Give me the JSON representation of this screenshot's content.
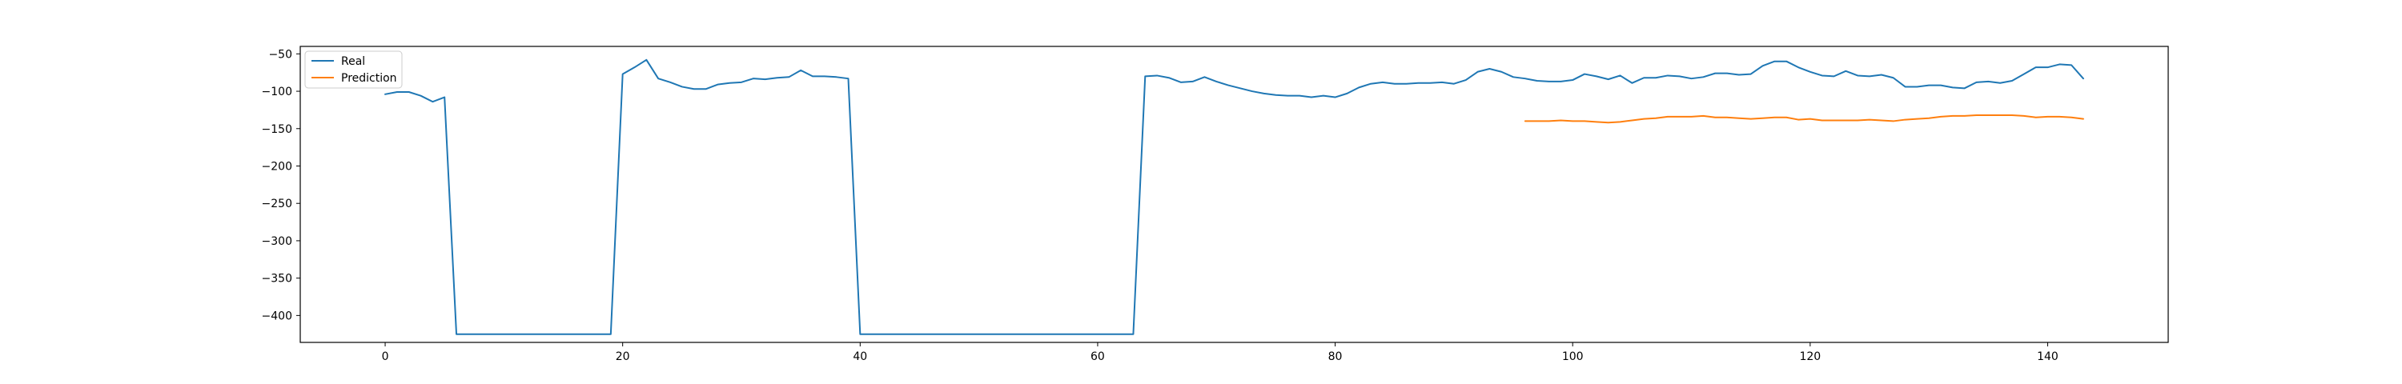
{
  "chart_data": {
    "type": "line",
    "title": "",
    "xlabel": "",
    "ylabel": "",
    "xlim": [
      -7.15,
      150.15
    ],
    "ylim": [
      -436,
      -40
    ],
    "xticks": [
      0,
      20,
      40,
      60,
      80,
      100,
      120,
      140
    ],
    "yticks": [
      -50,
      -100,
      -150,
      -200,
      -250,
      -300,
      -350,
      -400
    ],
    "grid": false,
    "legend": {
      "placement": "top-left"
    },
    "series": [
      {
        "name": "Real",
        "color": "#1f77b4",
        "x": [
          0,
          1,
          2,
          3,
          4,
          5,
          6,
          7,
          8,
          9,
          10,
          11,
          12,
          13,
          14,
          15,
          16,
          17,
          18,
          19,
          20,
          21,
          22,
          23,
          24,
          25,
          26,
          27,
          28,
          29,
          30,
          31,
          32,
          33,
          34,
          35,
          36,
          37,
          38,
          39,
          40,
          41,
          42,
          43,
          44,
          45,
          46,
          47,
          48,
          49,
          50,
          51,
          52,
          53,
          54,
          55,
          56,
          57,
          58,
          59,
          60,
          61,
          62,
          63,
          64,
          65,
          66,
          67,
          68,
          69,
          70,
          71,
          72,
          73,
          74,
          75,
          76,
          77,
          78,
          79,
          80,
          81,
          82,
          83,
          84,
          85,
          86,
          87,
          88,
          89,
          90,
          91,
          92,
          93,
          94,
          95,
          96,
          97,
          98,
          99,
          100,
          101,
          102,
          103,
          104,
          105,
          106,
          107,
          108,
          109,
          110,
          111,
          112,
          113,
          114,
          115,
          116,
          117,
          118,
          119,
          120,
          121,
          122,
          123,
          124,
          125,
          126,
          127,
          128,
          129,
          130,
          131,
          132,
          133,
          134,
          135,
          136,
          137,
          138,
          139,
          140,
          141,
          142,
          143
        ],
        "values": [
          -104,
          -101,
          -101,
          -106,
          -114,
          -108,
          -425,
          -425,
          -425,
          -425,
          -425,
          -425,
          -425,
          -425,
          -425,
          -425,
          -425,
          -425,
          -425,
          -425,
          -77,
          -68,
          -58,
          -83,
          -88,
          -94,
          -97,
          -97,
          -91,
          -89,
          -88,
          -83,
          -84,
          -82,
          -81,
          -72,
          -80,
          -80,
          -81,
          -83,
          -425,
          -425,
          -425,
          -425,
          -425,
          -425,
          -425,
          -425,
          -425,
          -425,
          -425,
          -425,
          -425,
          -425,
          -425,
          -425,
          -425,
          -425,
          -425,
          -425,
          -425,
          -425,
          -425,
          -425,
          -80,
          -79,
          -82,
          -88,
          -87,
          -81,
          -87,
          -92,
          -96,
          -100,
          -103,
          -105,
          -106,
          -106,
          -108,
          -106,
          -108,
          -103,
          -95,
          -90,
          -88,
          -90,
          -90,
          -89,
          -89,
          -88,
          -90,
          -85,
          -74,
          -70,
          -74,
          -81,
          -83,
          -86,
          -87,
          -87,
          -85,
          -77,
          -80,
          -84,
          -79,
          -89,
          -82,
          -82,
          -79,
          -80,
          -83,
          -81,
          -76,
          -76,
          -78,
          -77,
          -66,
          -60,
          -60,
          -68,
          -74,
          -79,
          -80,
          -73,
          -79,
          -80,
          -78,
          -82,
          -94,
          -94,
          -92,
          -92,
          -95,
          -96,
          -88,
          -87,
          -89,
          -86,
          -77,
          -68,
          -68,
          -64,
          -65,
          -83
        ]
      },
      {
        "name": "Prediction",
        "color": "#ff7f0e",
        "x": [
          96,
          97,
          98,
          99,
          100,
          101,
          102,
          103,
          104,
          105,
          106,
          107,
          108,
          109,
          110,
          111,
          112,
          113,
          114,
          115,
          116,
          117,
          118,
          119,
          120,
          121,
          122,
          123,
          124,
          125,
          126,
          127,
          128,
          129,
          130,
          131,
          132,
          133,
          134,
          135,
          136,
          137,
          138,
          139,
          140,
          141,
          142,
          143
        ],
        "values": [
          -140,
          -140,
          -140,
          -139,
          -140,
          -140,
          -141,
          -142,
          -141,
          -139,
          -137,
          -136,
          -134,
          -134,
          -134,
          -133,
          -135,
          -135,
          -136,
          -137,
          -136,
          -135,
          -135,
          -138,
          -137,
          -139,
          -139,
          -139,
          -139,
          -138,
          -139,
          -140,
          -138,
          -137,
          -136,
          -134,
          -133,
          -133,
          -132,
          -132,
          -132,
          -132,
          -133,
          -135,
          -134,
          -134,
          -135,
          -137
        ]
      }
    ]
  }
}
